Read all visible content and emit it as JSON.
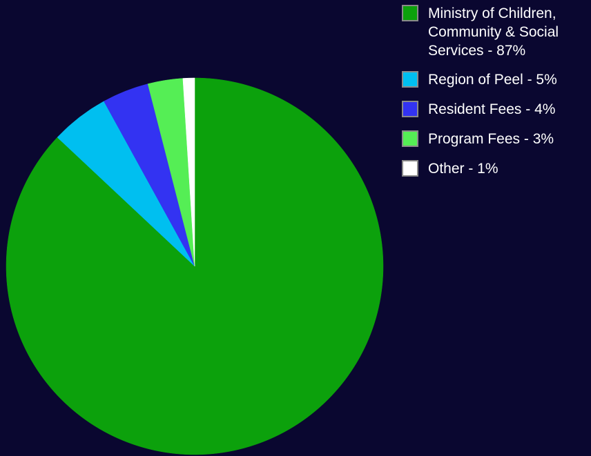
{
  "chart_data": {
    "type": "pie",
    "title": "",
    "slices": [
      {
        "label": "Ministry of Children, Community & Social Services - 87%",
        "value": 87,
        "color": "#0ca10c"
      },
      {
        "label": "Region of Peel - 5%",
        "value": 5,
        "color": "#00bff0"
      },
      {
        "label": "Resident Fees - 4%",
        "value": 4,
        "color": "#3333f2"
      },
      {
        "label": "Program Fees - 3%",
        "value": 3,
        "color": "#55ee55"
      },
      {
        "label": "Other  - 1%",
        "value": 1,
        "color": "#ffffff"
      }
    ],
    "start": "12 o'clock",
    "direction": "clockwise",
    "legend_position": "right"
  },
  "colors": {
    "background": "#0a0730",
    "legend_text": "#ffffff"
  }
}
